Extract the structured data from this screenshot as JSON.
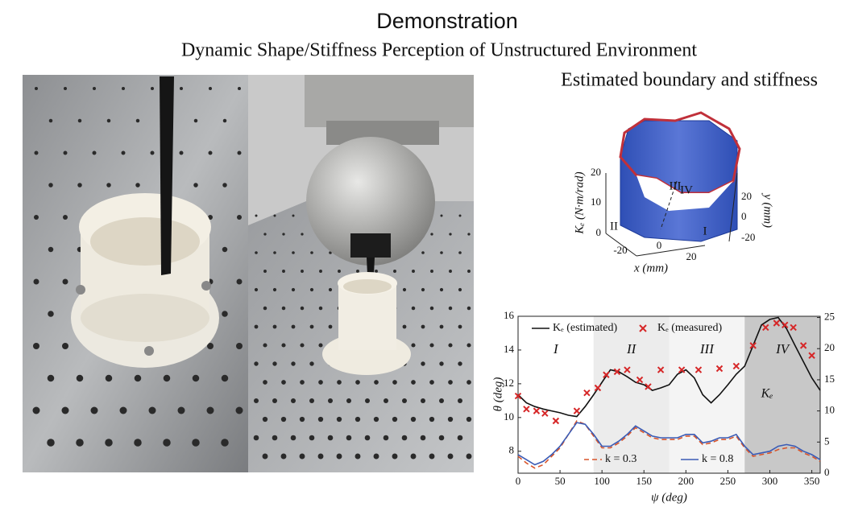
{
  "header": {
    "title": "Demonstration",
    "subtitle": "Dynamic Shape/Stiffness Perception of Unstructured Environment",
    "panel_title": "Estimated boundary and stiffness"
  },
  "figure3d": {
    "z_label": "Kₑ (N·m/rad)",
    "x_label": "x (mm)",
    "y_label": "y (mm)",
    "z_ticks": [
      20,
      10,
      0
    ],
    "x_ticks": [
      -20,
      0,
      20
    ],
    "y_ticks": [
      20,
      0,
      -20
    ],
    "regions": [
      "I",
      "II",
      "III",
      "IV"
    ]
  },
  "chart_data": {
    "type": "line",
    "x_label": "ψ (deg)",
    "y_label": "θ (deg)",
    "xlim": [
      0,
      360
    ],
    "xticks": [
      0,
      50,
      100,
      150,
      200,
      250,
      300,
      350
    ],
    "ylim": [
      6.7,
      16
    ],
    "yticks": [
      8,
      10,
      12,
      14,
      16
    ],
    "y2lim": [
      0,
      25.2
    ],
    "y2ticks": [
      0,
      5,
      10,
      15,
      20,
      25
    ],
    "regions": [
      {
        "label": "I",
        "from": 0,
        "to": 90,
        "color": "#ffffff"
      },
      {
        "label": "II",
        "from": 90,
        "to": 180,
        "color": "#ececec"
      },
      {
        "label": "III",
        "from": 180,
        "to": 270,
        "color": "#f4f4f4"
      },
      {
        "label": "IV",
        "from": 270,
        "to": 360,
        "color": "#c8c8c8"
      }
    ],
    "annotation": "Kₑ",
    "x": [
      0,
      10,
      20,
      30,
      40,
      50,
      60,
      70,
      80,
      90,
      100,
      110,
      120,
      130,
      140,
      150,
      160,
      170,
      180,
      190,
      200,
      210,
      220,
      230,
      240,
      250,
      260,
      270,
      280,
      290,
      300,
      310,
      320,
      330,
      340,
      350,
      360
    ],
    "series": [
      {
        "name": "Kₑ (estimated)",
        "color": "#111111",
        "axis": "y2",
        "style": "solid",
        "values": [
          12.6,
          11.3,
          10.7,
          10.3,
          10,
          9.7,
          9.3,
          9.1,
          10.7,
          12.6,
          14.6,
          16.6,
          16.3,
          15.5,
          14.6,
          14.2,
          13.3,
          13.7,
          14.2,
          15.9,
          16.6,
          15.3,
          12.6,
          11.3,
          12.6,
          14.2,
          15.9,
          17.2,
          20.5,
          23.8,
          24.7,
          25,
          23.2,
          20.5,
          17.9,
          15.3,
          13.3
        ]
      },
      {
        "name": "Kₑ (measured)",
        "color": "#d62728",
        "axis": "y2",
        "marker": "x",
        "x": [
          0,
          10,
          22,
          32,
          45,
          70,
          82,
          95,
          105,
          118,
          130,
          145,
          155,
          170,
          195,
          215,
          240,
          260,
          280,
          295,
          308,
          318,
          328,
          340,
          350
        ],
        "values": [
          12.4,
          10.3,
          10,
          9.6,
          8.4,
          10,
          12.9,
          13.7,
          15.8,
          16.3,
          16.6,
          15,
          13.9,
          16.6,
          16.6,
          16.6,
          16.8,
          17.2,
          20.5,
          23.4,
          24.1,
          23.8,
          23.4,
          20.5,
          18.9
        ]
      },
      {
        "name": "k = 0.3",
        "color": "#d9552b",
        "axis": "y",
        "style": "dashed",
        "values": [
          7.7,
          7.3,
          7,
          7.2,
          7.7,
          8.2,
          9,
          9.8,
          9.6,
          8.9,
          8.2,
          8.2,
          8.5,
          8.9,
          9.4,
          9.1,
          8.8,
          8.7,
          8.7,
          8.7,
          8.9,
          8.9,
          8.4,
          8.5,
          8.7,
          8.7,
          8.9,
          8.2,
          7.7,
          7.8,
          7.9,
          8.1,
          8.2,
          8.2,
          7.9,
          7.7,
          7.4
        ]
      },
      {
        "name": "k = 0.8",
        "color": "#3a5bb5",
        "axis": "y",
        "style": "solid",
        "values": [
          7.8,
          7.5,
          7.2,
          7.4,
          7.8,
          8.3,
          9,
          9.7,
          9.6,
          9,
          8.3,
          8.3,
          8.6,
          9,
          9.5,
          9.2,
          8.9,
          8.8,
          8.8,
          8.8,
          9,
          9,
          8.5,
          8.6,
          8.8,
          8.8,
          9,
          8.3,
          7.8,
          7.9,
          8,
          8.3,
          8.4,
          8.3,
          8,
          7.8,
          7.5
        ]
      }
    ]
  }
}
